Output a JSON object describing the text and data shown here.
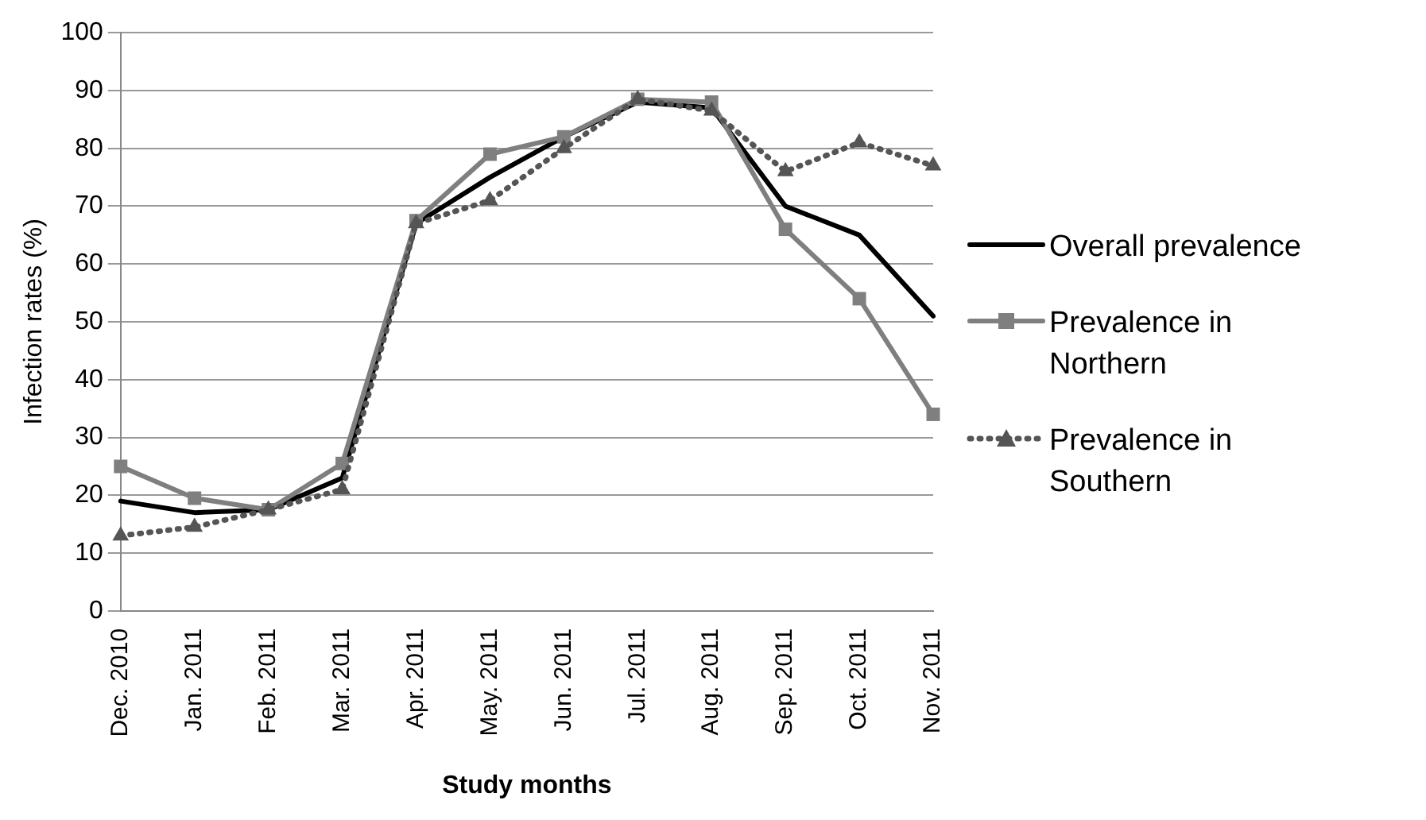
{
  "chart_data": {
    "type": "line",
    "xlabel": "Study months",
    "ylabel": "Infection rates (%)",
    "categories": [
      "Dec. 2010",
      "Jan. 2011",
      "Feb. 2011",
      "Mar. 2011",
      "Apr. 2011",
      "May. 2011",
      "Jun. 2011",
      "Jul. 2011",
      "Aug. 2011",
      "Sep. 2011",
      "Oct. 2011",
      "Nov. 2011"
    ],
    "series": [
      {
        "name": "Overall prevalence",
        "color": "#000000",
        "marker": "none",
        "line_style": "solid",
        "values": [
          19,
          17,
          17.5,
          23,
          67,
          75,
          82,
          88,
          87,
          70,
          65,
          51
        ]
      },
      {
        "name": "Prevalence in Northern",
        "color": "#7f7f7f",
        "marker": "square",
        "line_style": "solid",
        "values": [
          25,
          19.5,
          17.5,
          25.5,
          67.5,
          79,
          82,
          88.5,
          88,
          66,
          54,
          34
        ]
      },
      {
        "name": "Prevalence in Southern",
        "color": "#555555",
        "marker": "triangle",
        "line_style": "dotted",
        "values": [
          13,
          14.5,
          17.5,
          21,
          67,
          71,
          80,
          88.5,
          86.5,
          76,
          81,
          77
        ]
      }
    ],
    "ylim": [
      0,
      100
    ],
    "yticks": [
      0,
      10,
      20,
      30,
      40,
      50,
      60,
      70,
      80,
      90,
      100
    ],
    "grid": "y",
    "legend": "right"
  }
}
